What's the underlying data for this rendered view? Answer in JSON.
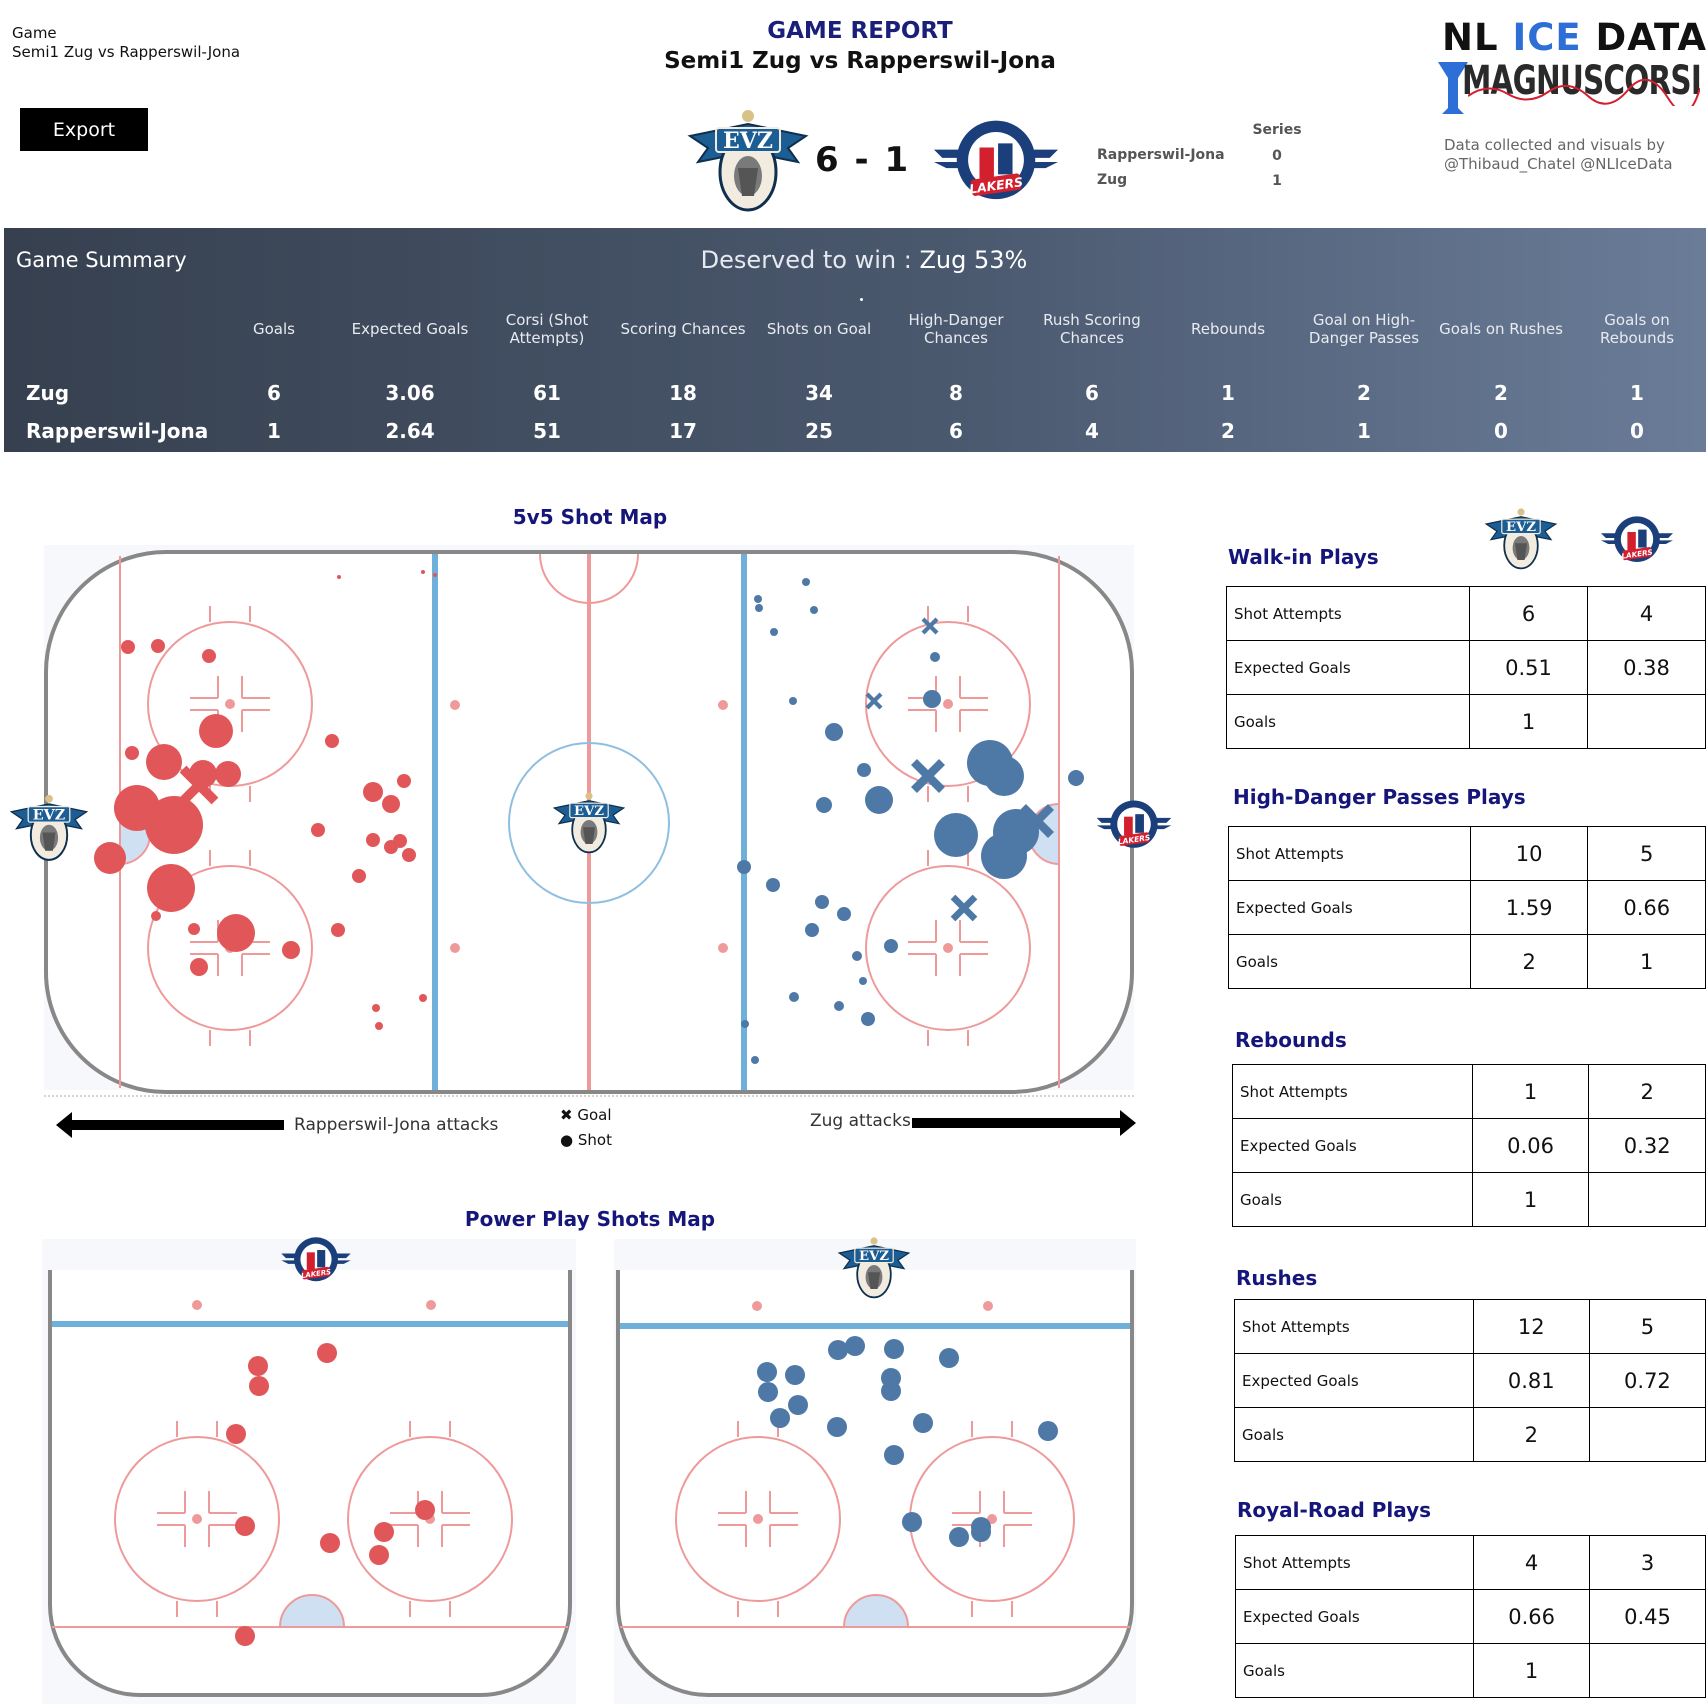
{
  "header": {
    "game_label": "Game",
    "game_value": "Semi1 Zug vs Rapperswil-Jona",
    "export_label": "Export",
    "report_title": "GAME REPORT",
    "report_subtitle": "Semi1 Zug vs Rapperswil-Jona",
    "score": "6 - 1",
    "home_logo": "EVZ",
    "away_logo": "LAKERS"
  },
  "series": {
    "title": "Series",
    "rows": [
      {
        "team": "Rapperswil-Jona",
        "value": "0"
      },
      {
        "team": "Zug",
        "value": "1"
      }
    ]
  },
  "branding": {
    "line1_a": "NL ",
    "line1_b": "ICE",
    "line1_c": " DATA",
    "line2": "MAGNUSCORSI",
    "credit": "Data collected and visuals by @Thibaud_Chatel @NLIceData",
    "accent": "#2d6fd6"
  },
  "summary": {
    "title": "Game Summary",
    "deserved_prefix": "Deserved to win : ",
    "deserved_value": "Zug 53%",
    "columns": [
      "Goals",
      "Expected Goals",
      "Corsi (Shot Attempts)",
      "Scoring Chances",
      "Shots on Goal",
      "High-Danger Chances",
      "Rush Scoring Chances",
      "Rebounds",
      "Goal on High-Danger Passes",
      "Goals on Rushes",
      "Goals on Rebounds"
    ],
    "rows": [
      {
        "team": "Zug",
        "values": [
          "6",
          "3.06",
          "61",
          "18",
          "34",
          "8",
          "6",
          "1",
          "2",
          "2",
          "1"
        ]
      },
      {
        "team": "Rapperswil-Jona",
        "values": [
          "1",
          "2.64",
          "51",
          "17",
          "25",
          "6",
          "4",
          "2",
          "1",
          "0",
          "0"
        ]
      }
    ]
  },
  "shotmap": {
    "title": "5v5 Shot Map",
    "left_attack": "Rapperswil-Jona attacks",
    "right_attack": "Zug attacks",
    "legend_goal": "Goal",
    "legend_shot": "Shot",
    "zug_color": "#4e79a7",
    "rj_color": "#e15759"
  },
  "powerplay": {
    "title": "Power Play Shots Map"
  },
  "tables": [
    {
      "title": "Walk-in Plays",
      "rows": [
        {
          "label": "Shot Attempts",
          "zug": "6",
          "rj": "4"
        },
        {
          "label": "Expected Goals",
          "zug": "0.51",
          "rj": "0.38"
        },
        {
          "label": "Goals",
          "zug": "1",
          "rj": ""
        }
      ]
    },
    {
      "title": "High-Danger Passes Plays",
      "rows": [
        {
          "label": "Shot Attempts",
          "zug": "10",
          "rj": "5"
        },
        {
          "label": "Expected Goals",
          "zug": "1.59",
          "rj": "0.66"
        },
        {
          "label": "Goals",
          "zug": "2",
          "rj": "1"
        }
      ]
    },
    {
      "title": "Rebounds",
      "rows": [
        {
          "label": "Shot Attempts",
          "zug": "1",
          "rj": "2"
        },
        {
          "label": "Expected Goals",
          "zug": "0.06",
          "rj": "0.32"
        },
        {
          "label": "Goals",
          "zug": "1",
          "rj": ""
        }
      ]
    },
    {
      "title": "Rushes",
      "rows": [
        {
          "label": "Shot Attempts",
          "zug": "12",
          "rj": "5"
        },
        {
          "label": "Expected Goals",
          "zug": "0.81",
          "rj": "0.72"
        },
        {
          "label": "Goals",
          "zug": "2",
          "rj": ""
        }
      ]
    },
    {
      "title": "Royal-Road Plays",
      "rows": [
        {
          "label": "Shot Attempts",
          "zug": "4",
          "rj": "3"
        },
        {
          "label": "Expected Goals",
          "zug": "0.66",
          "rj": "0.45"
        },
        {
          "label": "Goals",
          "zug": "1",
          "rj": ""
        }
      ]
    }
  ]
}
